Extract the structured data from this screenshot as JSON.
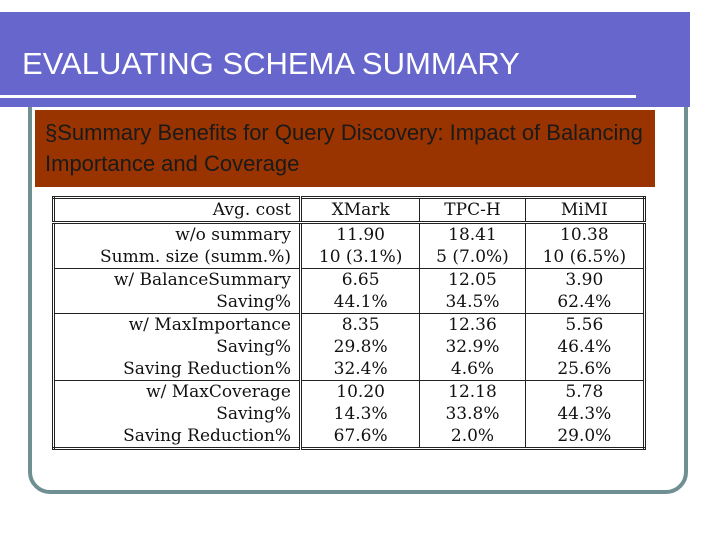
{
  "header": {
    "title": "EVALUATING SCHEMA SUMMARY"
  },
  "subtitle": {
    "text": "§Summary Benefits for Query Discovery: Impact of Balancing Importance and Coverage"
  },
  "table": {
    "columns": [
      "Avg. cost",
      "XMark",
      "TPC-H",
      "MiMI"
    ],
    "groups": [
      [
        [
          "w/o summary",
          "11.90",
          "18.41",
          "10.38"
        ],
        [
          "Summ. size (summ.%)",
          "10 (3.1%)",
          "5 (7.0%)",
          "10 (6.5%)"
        ]
      ],
      [
        [
          "w/ BalanceSummary",
          "6.65",
          "12.05",
          "3.90"
        ],
        [
          "Saving%",
          "44.1%",
          "34.5%",
          "62.4%"
        ]
      ],
      [
        [
          "w/ MaxImportance",
          "8.35",
          "12.36",
          "5.56"
        ],
        [
          "Saving%",
          "29.8%",
          "32.9%",
          "46.4%"
        ],
        [
          "Saving Reduction%",
          "32.4%",
          "4.6%",
          "25.6%"
        ]
      ],
      [
        [
          "w/ MaxCoverage",
          "10.20",
          "12.18",
          "5.78"
        ],
        [
          "Saving%",
          "14.3%",
          "33.8%",
          "44.3%"
        ],
        [
          "Saving Reduction%",
          "67.6%",
          "2.0%",
          "29.0%"
        ]
      ]
    ]
  }
}
